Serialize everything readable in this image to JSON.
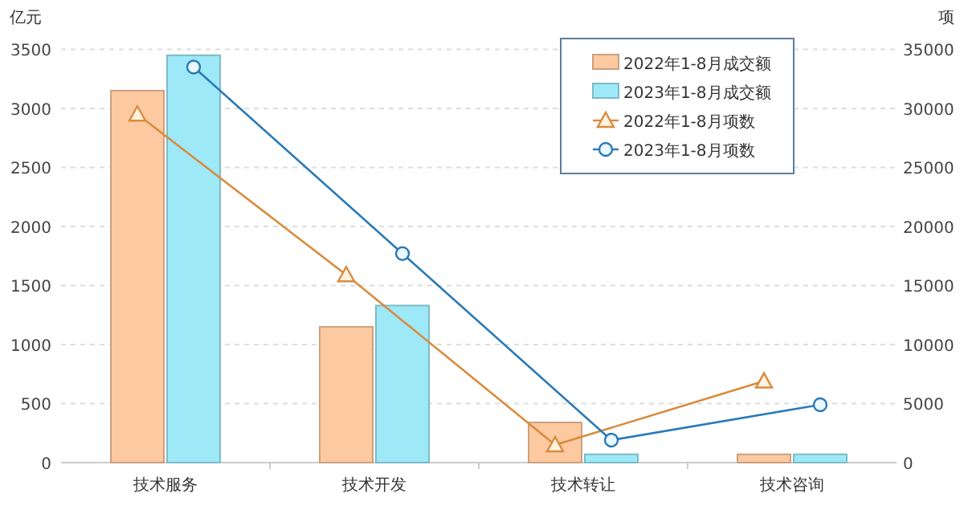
{
  "chart_data": {
    "type": "bar",
    "ylabel": "亿元",
    "y2label": "项",
    "categories": [
      "技术服务",
      "技术开发",
      "技术转让",
      "技术咨询"
    ],
    "series": [
      {
        "name": "2022年1-8月成交额",
        "color": "#fcc9a0",
        "values": [
          3150,
          1150,
          340,
          70
        ]
      },
      {
        "name": "2023年1-8月成交额",
        "color": "#9de9f8",
        "values": [
          3450,
          1330,
          70,
          70
        ]
      },
      {
        "name": "2022年1-8月项数",
        "type": "line",
        "axis": "y2",
        "marker": "triangle",
        "color": "#d98b3e",
        "values": [
          29500,
          15900,
          1500,
          6900
        ]
      },
      {
        "name": "2023年1-8月项数",
        "type": "line",
        "axis": "y2",
        "marker": "circle",
        "color": "#2a7ab8",
        "values": [
          33500,
          17700,
          1900,
          4900
        ]
      }
    ],
    "ylim": [
      0,
      3500
    ],
    "yticks": [
      0,
      500,
      1000,
      1500,
      2000,
      2500,
      3000,
      3500
    ],
    "y2lim": [
      0,
      35000
    ],
    "y2ticks": [
      0,
      5000,
      10000,
      15000,
      20000,
      25000,
      30000,
      35000
    ],
    "grid": "y",
    "legend": "top right"
  }
}
